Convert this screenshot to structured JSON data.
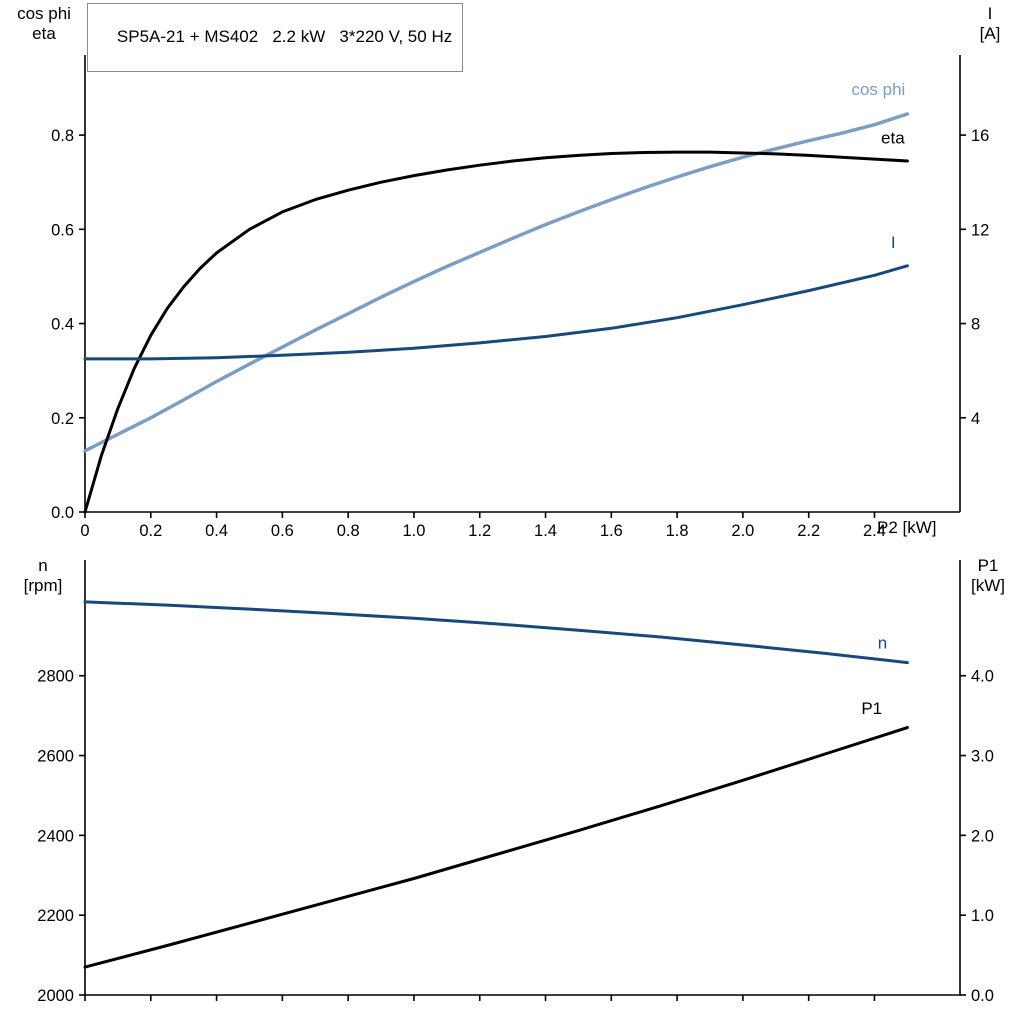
{
  "title_box": {
    "text": "SP5A-21 + MS402   2.2 kW   3*220 V, 50 Hz"
  },
  "axis_corner_labels": {
    "top_left": {
      "line1": "cos phi",
      "line2": "eta"
    },
    "top_right": {
      "line1": "I",
      "line2": "[A]"
    },
    "x_label": "P2 [kW]",
    "bottom_left": {
      "line1": "n",
      "line2": "[rpm]"
    },
    "bottom_right": {
      "line1": "P1",
      "line2": "[kW]"
    }
  },
  "colors": {
    "black": "#000000",
    "dark_blue": "#17497b",
    "light_blue": "#7d9dc2",
    "axis": "#000000"
  },
  "chart_data": [
    {
      "type": "line",
      "id": "top",
      "title": "SP5A-21 + MS402  2.2 kW  3*220 V, 50 Hz",
      "xlabel": "P2 [kW]",
      "x_axis": {
        "range": [
          0,
          2.66
        ],
        "ticks": [
          0,
          0.2,
          0.4,
          0.6,
          0.8,
          1.0,
          1.2,
          1.4,
          1.6,
          1.8,
          2.0,
          2.2,
          2.4
        ],
        "tick_labels": [
          "0",
          "0.2",
          "0.4",
          "0.6",
          "0.8",
          "1.0",
          "1.2",
          "1.4",
          "1.6",
          "1.8",
          "2.0",
          "2.2",
          "2.4"
        ],
        "show_tick_labels": true
      },
      "left_axis": {
        "label": "cos phi / eta",
        "range": [
          0,
          0.97
        ],
        "ticks": [
          0.0,
          0.2,
          0.4,
          0.6,
          0.8
        ],
        "tick_labels": [
          "0.0",
          "0.2",
          "0.4",
          "0.6",
          "0.8"
        ]
      },
      "right_axis": {
        "label": "I [A]",
        "range": [
          0,
          19.4
        ],
        "ticks": [
          4,
          8,
          12,
          16
        ],
        "tick_labels": [
          "4",
          "8",
          "12",
          "16"
        ]
      },
      "series": [
        {
          "name": "cos phi",
          "axis": "left",
          "color": "#7d9dc2",
          "width": 3.5,
          "label": {
            "text": "cos phi",
            "x": 2.33,
            "y": 0.885
          },
          "points": [
            [
              0,
              0.13
            ],
            [
              0.1,
              0.165
            ],
            [
              0.2,
              0.2
            ],
            [
              0.3,
              0.238
            ],
            [
              0.4,
              0.277
            ],
            [
              0.5,
              0.314
            ],
            [
              0.6,
              0.35
            ],
            [
              0.7,
              0.386
            ],
            [
              0.8,
              0.421
            ],
            [
              0.9,
              0.456
            ],
            [
              1.0,
              0.489
            ],
            [
              1.1,
              0.521
            ],
            [
              1.2,
              0.551
            ],
            [
              1.3,
              0.581
            ],
            [
              1.4,
              0.61
            ],
            [
              1.5,
              0.637
            ],
            [
              1.6,
              0.663
            ],
            [
              1.7,
              0.688
            ],
            [
              1.8,
              0.711
            ],
            [
              1.9,
              0.733
            ],
            [
              2.0,
              0.753
            ],
            [
              2.1,
              0.771
            ],
            [
              2.2,
              0.788
            ],
            [
              2.3,
              0.804
            ],
            [
              2.4,
              0.822
            ],
            [
              2.5,
              0.845
            ]
          ]
        },
        {
          "name": "eta",
          "axis": "left",
          "color": "#000000",
          "width": 3,
          "label": {
            "text": "eta",
            "x": 2.42,
            "y": 0.782
          },
          "points": [
            [
              0,
              0
            ],
            [
              0.05,
              0.12
            ],
            [
              0.1,
              0.22
            ],
            [
              0.15,
              0.305
            ],
            [
              0.2,
              0.375
            ],
            [
              0.25,
              0.432
            ],
            [
              0.3,
              0.478
            ],
            [
              0.35,
              0.517
            ],
            [
              0.4,
              0.55
            ],
            [
              0.5,
              0.6
            ],
            [
              0.6,
              0.637
            ],
            [
              0.7,
              0.663
            ],
            [
              0.8,
              0.683
            ],
            [
              0.9,
              0.7
            ],
            [
              1.0,
              0.714
            ],
            [
              1.1,
              0.726
            ],
            [
              1.2,
              0.736
            ],
            [
              1.3,
              0.745
            ],
            [
              1.4,
              0.752
            ],
            [
              1.5,
              0.757
            ],
            [
              1.6,
              0.761
            ],
            [
              1.7,
              0.763
            ],
            [
              1.8,
              0.764
            ],
            [
              1.9,
              0.764
            ],
            [
              2.0,
              0.762
            ],
            [
              2.1,
              0.76
            ],
            [
              2.2,
              0.757
            ],
            [
              2.3,
              0.753
            ],
            [
              2.4,
              0.749
            ],
            [
              2.5,
              0.745
            ]
          ]
        },
        {
          "name": "I",
          "axis": "right",
          "color": "#17497b",
          "width": 3,
          "label": {
            "text": "I",
            "x": 2.45,
            "y": 11.2
          },
          "points": [
            [
              0,
              6.5
            ],
            [
              0.2,
              6.5
            ],
            [
              0.4,
              6.55
            ],
            [
              0.6,
              6.65
            ],
            [
              0.8,
              6.78
            ],
            [
              1.0,
              6.95
            ],
            [
              1.2,
              7.18
            ],
            [
              1.4,
              7.45
            ],
            [
              1.6,
              7.8
            ],
            [
              1.8,
              8.25
            ],
            [
              2.0,
              8.8
            ],
            [
              2.2,
              9.4
            ],
            [
              2.4,
              10.05
            ],
            [
              2.5,
              10.45
            ]
          ]
        }
      ]
    },
    {
      "type": "line",
      "id": "bottom",
      "title": "",
      "xlabel": "",
      "x_axis": {
        "range": [
          0,
          2.66
        ],
        "ticks": [
          0,
          0.2,
          0.4,
          0.6,
          0.8,
          1.0,
          1.2,
          1.4,
          1.6,
          1.8,
          2.0,
          2.2,
          2.4
        ],
        "tick_labels": [],
        "show_tick_labels": false
      },
      "left_axis": {
        "label": "n [rpm]",
        "range": [
          2000,
          3090
        ],
        "ticks": [
          2000,
          2200,
          2400,
          2600,
          2800
        ],
        "tick_labels": [
          "2000",
          "2200",
          "2400",
          "2600",
          "2800"
        ]
      },
      "right_axis": {
        "label": "P1 [kW]",
        "range": [
          0,
          5.45
        ],
        "ticks": [
          0.0,
          1.0,
          2.0,
          3.0,
          4.0
        ],
        "tick_labels": [
          "0.0",
          "1.0",
          "2.0",
          "3.0",
          "4.0"
        ]
      },
      "series": [
        {
          "name": "n",
          "axis": "left",
          "color": "#17497b",
          "width": 3,
          "label": {
            "text": "n",
            "x": 2.41,
            "y": 2868
          },
          "points": [
            [
              0,
              2985
            ],
            [
              0.25,
              2977
            ],
            [
              0.5,
              2967
            ],
            [
              0.75,
              2956
            ],
            [
              1.0,
              2944
            ],
            [
              1.25,
              2930
            ],
            [
              1.5,
              2914
            ],
            [
              1.75,
              2897
            ],
            [
              2.0,
              2877
            ],
            [
              2.25,
              2856
            ],
            [
              2.5,
              2833
            ]
          ]
        },
        {
          "name": "P1",
          "axis": "right",
          "color": "#000000",
          "width": 3,
          "label": {
            "text": "P1",
            "x": 2.36,
            "y": 3.52
          },
          "points": [
            [
              0,
              0.35
            ],
            [
              0.25,
              0.62
            ],
            [
              0.5,
              0.9
            ],
            [
              0.75,
              1.18
            ],
            [
              1.0,
              1.46
            ],
            [
              1.25,
              1.76
            ],
            [
              1.5,
              2.06
            ],
            [
              1.75,
              2.37
            ],
            [
              2.0,
              2.69
            ],
            [
              2.25,
              3.02
            ],
            [
              2.5,
              3.35
            ]
          ]
        }
      ]
    }
  ]
}
